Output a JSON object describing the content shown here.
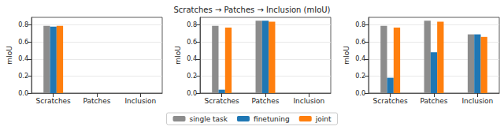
{
  "title": "Scratches → Patches → Inclusion (mIoU)",
  "legend": "bottom",
  "chart_data": [
    {
      "type": "bar",
      "ylabel": "mIoU",
      "grid": true,
      "categories": [
        "Scratches",
        "Patches",
        "Inclusion"
      ],
      "ylim": [
        0,
        0.89
      ],
      "yticks": [
        {
          "value": 0,
          "label": "0.0"
        },
        {
          "value": 0.2,
          "label": "0.2"
        },
        {
          "value": 0.4,
          "label": "0.4"
        },
        {
          "value": 0.6,
          "label": "0.6"
        },
        {
          "value": 0.8,
          "label": "0.8"
        }
      ],
      "series": [
        {
          "name": "single task",
          "color": "#8c8c8c",
          "values": [
            0.79,
            null,
            null
          ]
        },
        {
          "name": "finetuning",
          "color": "#1f77b4",
          "values": [
            0.78,
            null,
            null
          ]
        },
        {
          "name": "joint",
          "color": "#ff7f0e",
          "values": [
            0.79,
            null,
            null
          ]
        }
      ]
    },
    {
      "type": "bar",
      "ylabel": "mIoU",
      "grid": true,
      "categories": [
        "Scratches",
        "Patches",
        "Inclusion"
      ],
      "ylim": [
        0,
        0.89
      ],
      "yticks": [
        {
          "value": 0,
          "label": "0.0"
        },
        {
          "value": 0.2,
          "label": "0.2"
        },
        {
          "value": 0.4,
          "label": "0.4"
        },
        {
          "value": 0.6,
          "label": "0.6"
        },
        {
          "value": 0.8,
          "label": "0.8"
        }
      ],
      "series": [
        {
          "name": "single task",
          "color": "#8c8c8c",
          "values": [
            0.79,
            0.85,
            null
          ]
        },
        {
          "name": "finetuning",
          "color": "#1f77b4",
          "values": [
            0.04,
            0.85,
            null
          ]
        },
        {
          "name": "joint",
          "color": "#ff7f0e",
          "values": [
            0.77,
            0.84,
            null
          ]
        }
      ]
    },
    {
      "type": "bar",
      "ylabel": "mIoU",
      "grid": true,
      "categories": [
        "Scratches",
        "Patches",
        "Inclusion"
      ],
      "ylim": [
        0,
        0.89
      ],
      "yticks": [
        {
          "value": 0,
          "label": "0.0"
        },
        {
          "value": 0.2,
          "label": "0.2"
        },
        {
          "value": 0.4,
          "label": "0.4"
        },
        {
          "value": 0.6,
          "label": "0.6"
        },
        {
          "value": 0.8,
          "label": "0.8"
        }
      ],
      "series": [
        {
          "name": "single task",
          "color": "#8c8c8c",
          "values": [
            0.79,
            0.85,
            0.69
          ]
        },
        {
          "name": "finetuning",
          "color": "#1f77b4",
          "values": [
            0.18,
            0.48,
            0.69
          ]
        },
        {
          "name": "joint",
          "color": "#ff7f0e",
          "values": [
            0.77,
            0.84,
            0.66
          ]
        }
      ]
    }
  ]
}
